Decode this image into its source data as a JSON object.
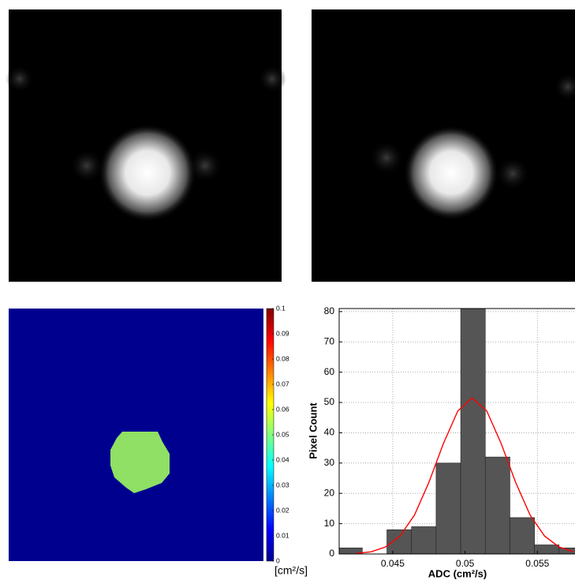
{
  "chart_data": [
    {
      "type": "colorbar",
      "label": "[cm²/s]",
      "ylim": [
        0,
        0.1
      ],
      "yticks": [
        0,
        0.01,
        0.02,
        0.03,
        0.04,
        0.05,
        0.06,
        0.07,
        0.08,
        0.09,
        0.1
      ]
    },
    {
      "type": "histogram",
      "xlabel": "ADC (cm²/s)",
      "ylabel": "Pixel Count",
      "bins": [
        0.0412,
        0.0429,
        0.0446,
        0.0463,
        0.048,
        0.0497,
        0.0514,
        0.0531,
        0.0548,
        0.0565,
        0.0582
      ],
      "values": [
        2,
        0,
        8,
        9,
        30,
        85,
        32,
        12,
        3,
        2
      ],
      "color": "#555555",
      "fit": {
        "color": "#ff0000",
        "x": [
          0.0425,
          0.0435,
          0.0445,
          0.0455,
          0.0465,
          0.0475,
          0.0485,
          0.0495,
          0.0505,
          0.0515,
          0.0525,
          0.0535,
          0.0545,
          0.0555,
          0.0565,
          0.0575
        ],
        "values": [
          0.2,
          0.7,
          2.3,
          5.9,
          12.8,
          23.6,
          36.4,
          47.2,
          51.5,
          47.2,
          36.4,
          23.6,
          12.8,
          5.9,
          2.3,
          0.7
        ]
      },
      "xlim": [
        0.0413,
        0.0576
      ],
      "ylim": [
        0,
        81
      ],
      "xticks": [
        0.045,
        0.05,
        0.055
      ],
      "yticks": [
        0,
        10,
        20,
        30,
        40,
        50,
        60,
        70,
        80
      ],
      "grid": true
    }
  ]
}
